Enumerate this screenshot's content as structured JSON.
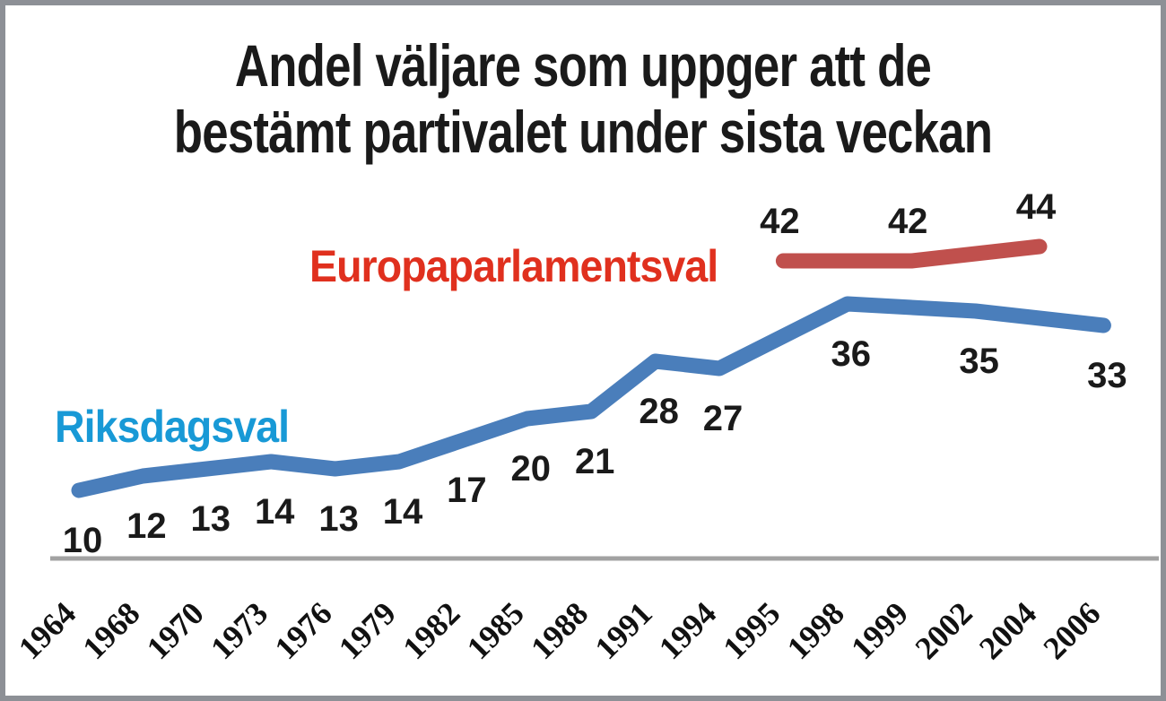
{
  "title": {
    "line1": "Andel väljare som uppger att de",
    "line2": "bestämt partivalet under sista veckan"
  },
  "chart_data": {
    "type": "line",
    "title": "Andel väljare som uppger att de bestämt partivalet under sista veckan",
    "categories": [
      "1964",
      "1968",
      "1970",
      "1973",
      "1976",
      "1979",
      "1982",
      "1985",
      "1988",
      "1991",
      "1994",
      "1995",
      "1998",
      "1999",
      "2002",
      "2004",
      "2006"
    ],
    "series": [
      {
        "name": "Riksdagsval",
        "color": "#4a7ebb",
        "label_color": "#1899d6",
        "values": [
          10,
          12,
          13,
          14,
          13,
          14,
          17,
          20,
          21,
          28,
          27,
          null,
          36,
          null,
          35,
          null,
          33
        ]
      },
      {
        "name": "Europaparlamentsval",
        "color": "#c0504d",
        "label_color": "#e0301e",
        "values": [
          null,
          null,
          null,
          null,
          null,
          null,
          null,
          null,
          null,
          null,
          null,
          42,
          null,
          42,
          null,
          44,
          null
        ]
      }
    ],
    "ylim": [
      0,
      50
    ],
    "grid": false,
    "y_axis_visible": false,
    "x_axis_line_color": "#a2a2a2",
    "data_label_color": "#1a1a1a",
    "value_labels": true,
    "legend_position": "inline-next-to-line"
  },
  "frame": {
    "border_color": "#8d9096",
    "background": "#ffffff"
  }
}
